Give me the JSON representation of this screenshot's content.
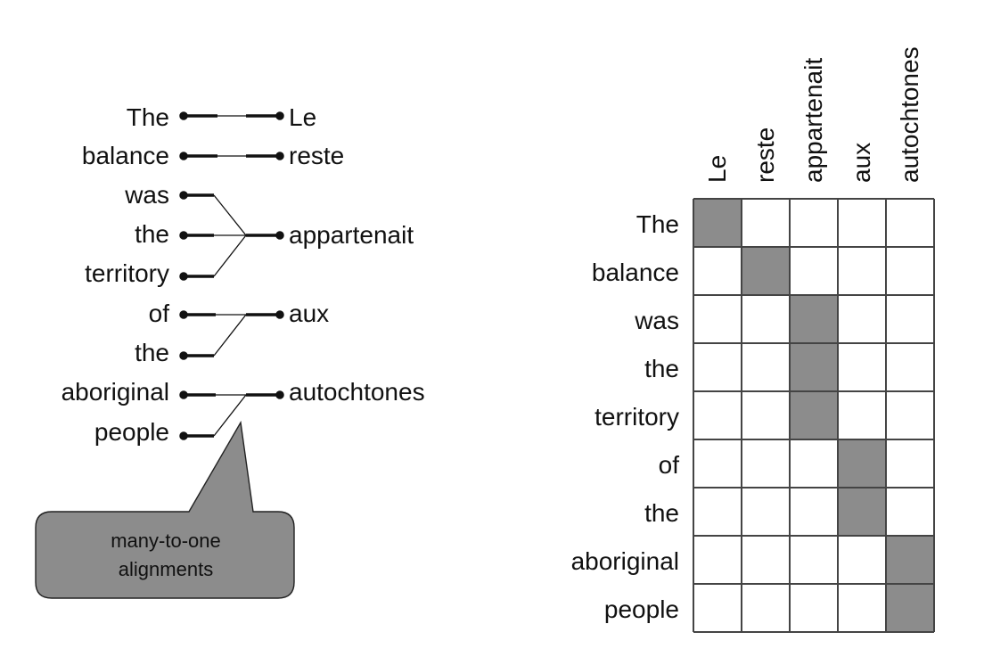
{
  "left_diagram": {
    "english_words": [
      "The",
      "balance",
      "was",
      "the",
      "territory",
      "of",
      "the",
      "aboriginal",
      "people"
    ],
    "french_words": [
      "Le",
      "reste",
      "appartenait",
      "aux",
      "autochtones"
    ],
    "alignments": [
      [
        0,
        0
      ],
      [
        1,
        1
      ],
      [
        2,
        2
      ],
      [
        3,
        2
      ],
      [
        4,
        2
      ],
      [
        5,
        3
      ],
      [
        6,
        3
      ],
      [
        7,
        4
      ],
      [
        8,
        4
      ]
    ],
    "callout": {
      "line1": "many-to-one",
      "line2": "alignments",
      "fill": "#8c8c8c"
    }
  },
  "matrix": {
    "row_labels": [
      "The",
      "balance",
      "was",
      "the",
      "territory",
      "of",
      "the",
      "aboriginal",
      "people"
    ],
    "column_labels": [
      "Le",
      "reste",
      "appartenait",
      "aux",
      "autochtones"
    ],
    "cell_fill": "#8c8c8c",
    "grid_color": "#444444"
  }
}
